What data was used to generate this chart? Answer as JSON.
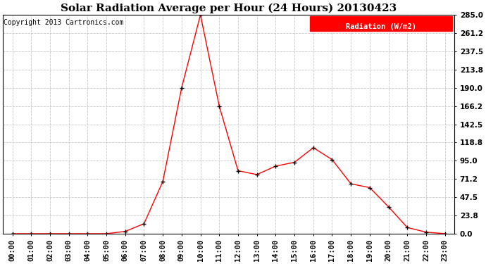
{
  "title": "Solar Radiation Average per Hour (24 Hours) 20130423",
  "copyright": "Copyright 2013 Cartronics.com",
  "legend_label": "Radiation (W/m2)",
  "hours": [
    "00:00",
    "01:00",
    "02:00",
    "03:00",
    "04:00",
    "05:00",
    "06:00",
    "07:00",
    "08:00",
    "09:00",
    "10:00",
    "11:00",
    "12:00",
    "13:00",
    "14:00",
    "15:00",
    "16:00",
    "17:00",
    "18:00",
    "19:00",
    "20:00",
    "21:00",
    "22:00",
    "23:00"
  ],
  "values": [
    0.0,
    0.0,
    0.0,
    0.0,
    0.0,
    0.0,
    3.0,
    13.0,
    68.0,
    190.0,
    285.0,
    166.2,
    82.0,
    77.0,
    88.0,
    93.0,
    112.0,
    96.5,
    65.0,
    60.0,
    35.0,
    8.0,
    2.0,
    0.0
  ],
  "yticks": [
    0.0,
    23.8,
    47.5,
    71.2,
    95.0,
    118.8,
    142.5,
    166.2,
    190.0,
    213.8,
    237.5,
    261.2,
    285.0
  ],
  "ymax": 285.0,
  "ymin": 0.0,
  "line_color": "red",
  "marker_color": "black",
  "bg_color": "white",
  "grid_color": "#c8c8c8",
  "title_fontsize": 11,
  "copyright_fontsize": 7,
  "tick_fontsize": 7.5,
  "legend_bg": "red",
  "legend_text_color": "white"
}
